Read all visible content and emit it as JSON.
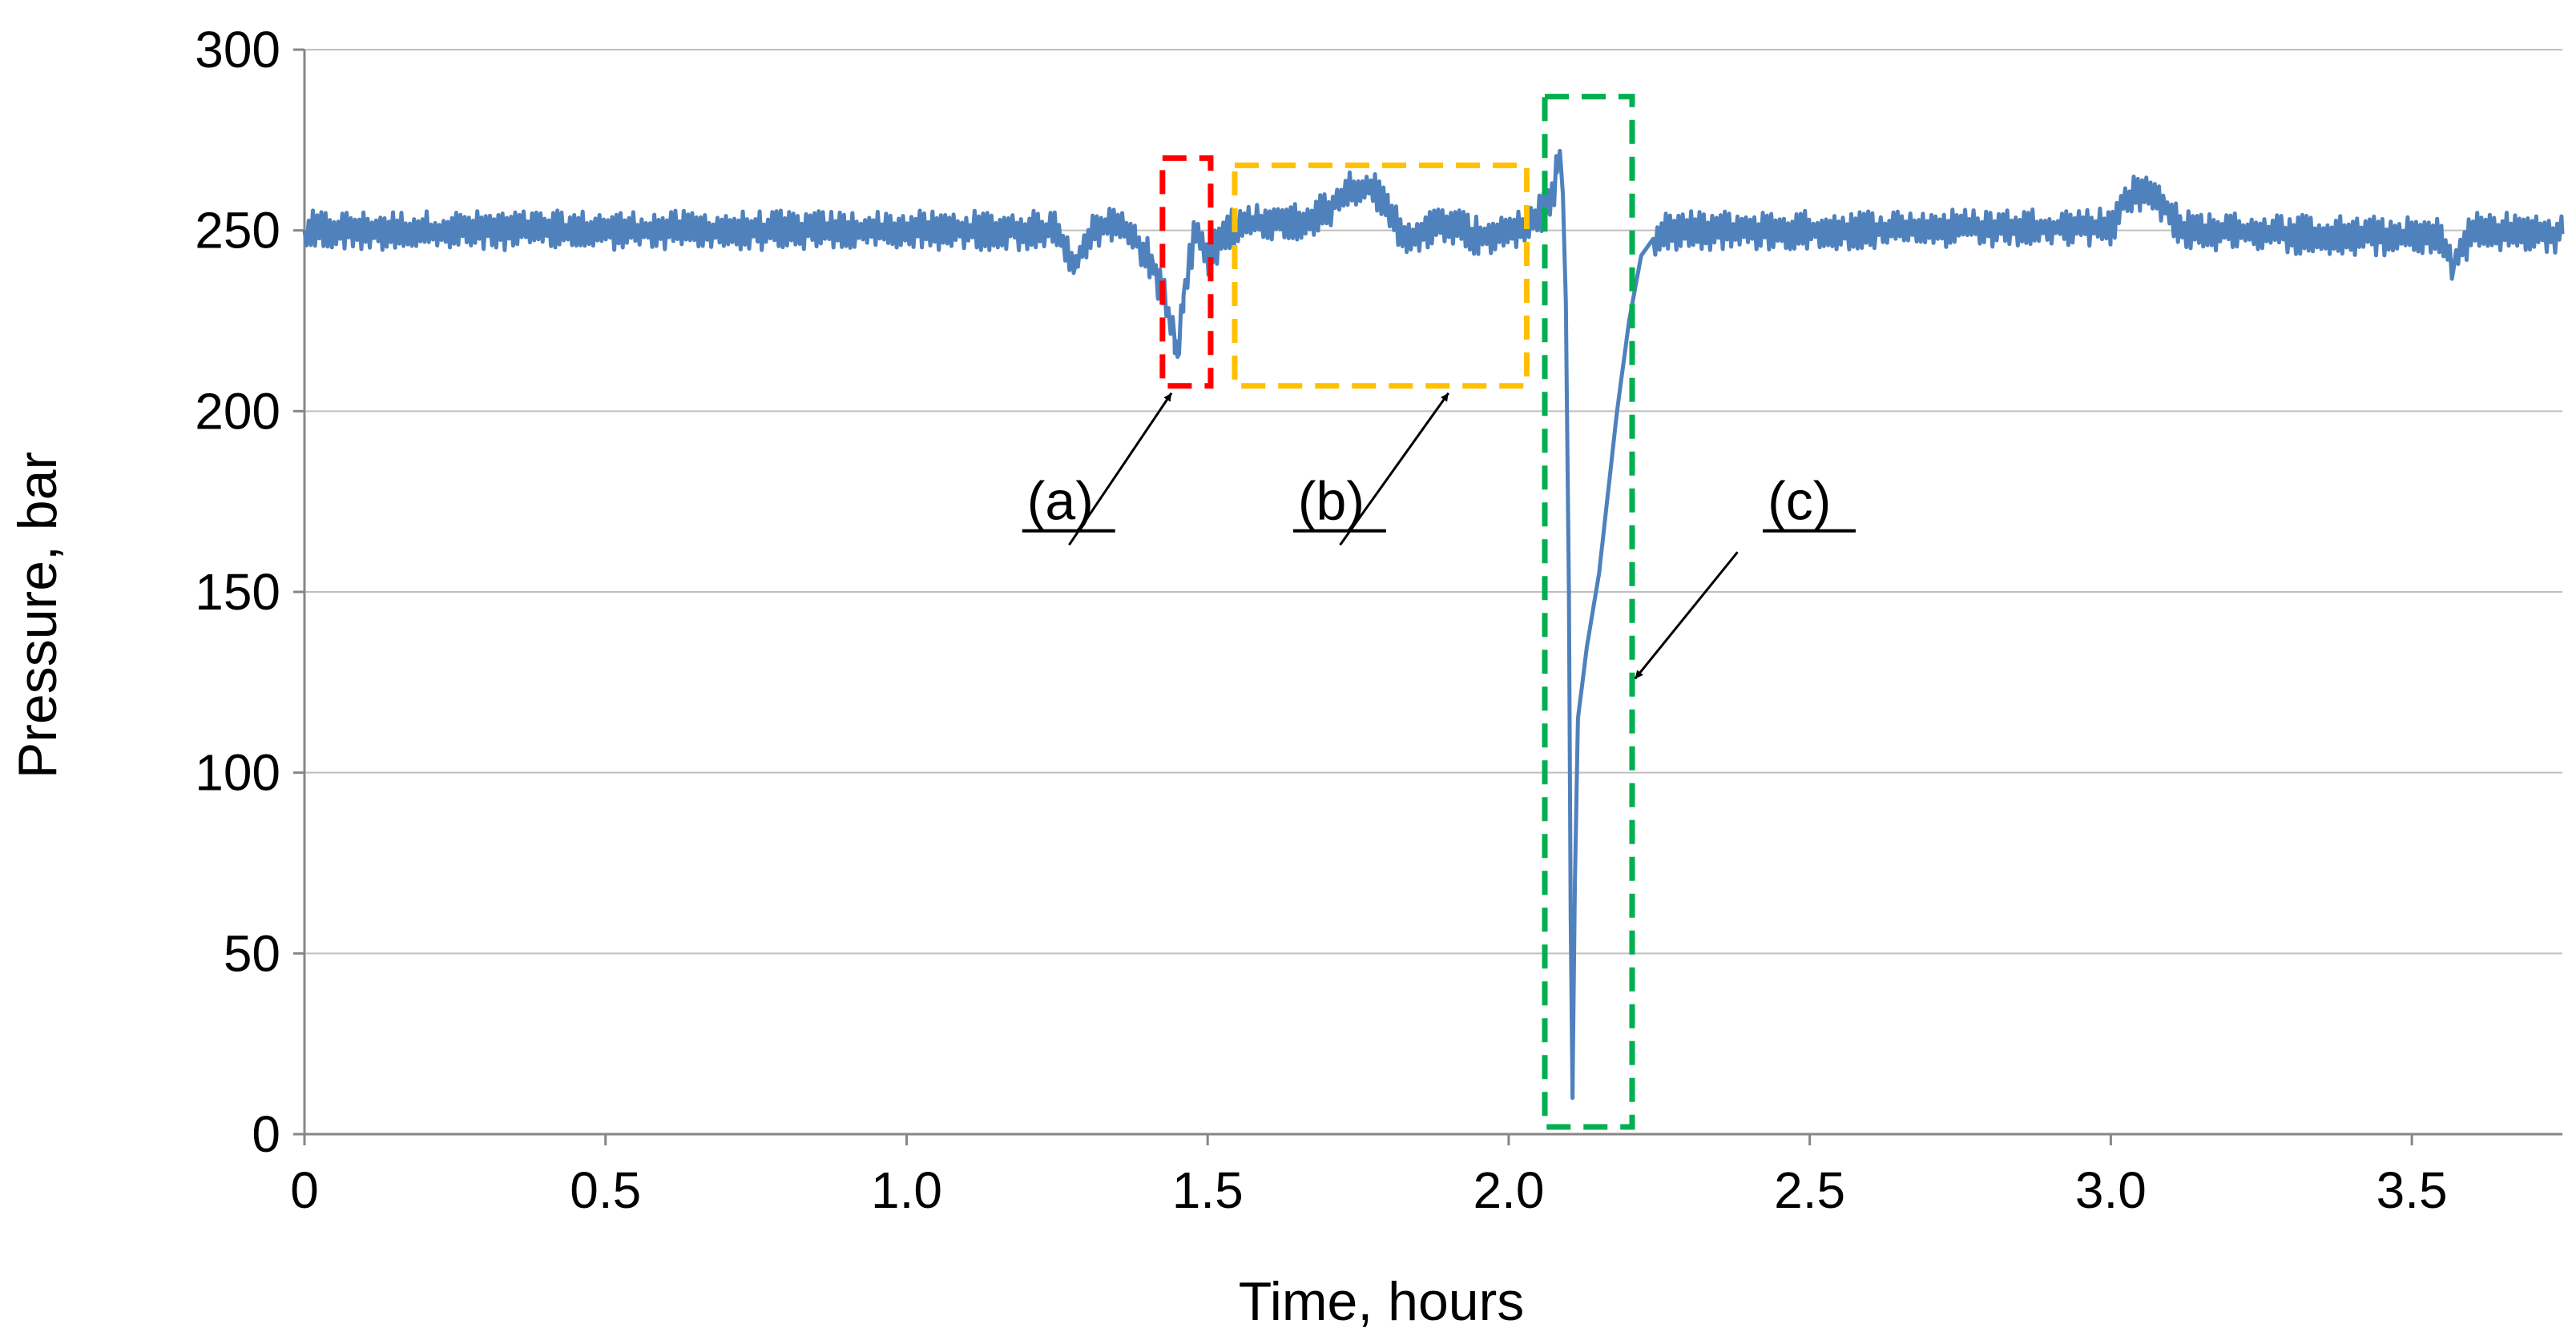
{
  "chart_data": {
    "type": "line",
    "title": "",
    "xlabel": "Time, hours",
    "ylabel": "Pressure, bar",
    "xlim": [
      0,
      3.75
    ],
    "ylim": [
      0,
      300
    ],
    "x_ticks": [
      0,
      0.5,
      1.0,
      1.5,
      2.0,
      2.5,
      3.0,
      3.5
    ],
    "x_tick_labels": [
      "0",
      "0.5",
      "1.0",
      "1.5",
      "2.0",
      "2.5",
      "3.0",
      "3.5"
    ],
    "y_ticks": [
      0,
      50,
      100,
      150,
      200,
      250,
      300
    ],
    "y_tick_labels": [
      "0",
      "50",
      "100",
      "150",
      "200",
      "250",
      "300"
    ],
    "grid": "horizontal",
    "series": [
      {
        "name": "Pressure",
        "color": "#4F81BD",
        "baseline": 250,
        "noise_amplitude": 4,
        "points": [
          [
            0.0,
            250
          ],
          [
            1.25,
            250
          ],
          [
            1.28,
            240
          ],
          [
            1.3,
            248
          ],
          [
            1.34,
            252
          ],
          [
            1.38,
            248
          ],
          [
            1.41,
            240
          ],
          [
            1.43,
            230
          ],
          [
            1.445,
            220
          ],
          [
            1.45,
            215
          ],
          [
            1.46,
            232
          ],
          [
            1.48,
            250
          ],
          [
            1.5,
            242
          ],
          [
            1.53,
            250
          ],
          [
            1.6,
            253
          ],
          [
            1.65,
            252
          ],
          [
            1.7,
            256
          ],
          [
            1.74,
            262
          ],
          [
            1.77,
            262
          ],
          [
            1.8,
            255
          ],
          [
            1.83,
            248
          ],
          [
            1.9,
            252
          ],
          [
            1.95,
            248
          ],
          [
            2.0,
            250
          ],
          [
            2.04,
            252
          ],
          [
            2.07,
            258
          ],
          [
            2.08,
            266
          ],
          [
            2.085,
            272
          ],
          [
            2.09,
            260
          ],
          [
            2.095,
            230
          ],
          [
            2.1,
            150
          ],
          [
            2.103,
            60
          ],
          [
            2.106,
            10
          ],
          [
            2.11,
            70
          ],
          [
            2.115,
            115
          ],
          [
            2.13,
            135
          ],
          [
            2.15,
            155
          ],
          [
            2.16,
            170
          ],
          [
            2.18,
            200
          ],
          [
            2.2,
            225
          ],
          [
            2.22,
            243
          ],
          [
            2.25,
            250
          ],
          [
            2.5,
            250
          ],
          [
            3.0,
            251
          ],
          [
            3.02,
            258
          ],
          [
            3.05,
            261
          ],
          [
            3.09,
            257
          ],
          [
            3.12,
            250
          ],
          [
            3.3,
            249
          ],
          [
            3.55,
            248
          ],
          [
            3.57,
            240
          ],
          [
            3.6,
            250
          ],
          [
            3.75,
            249
          ]
        ]
      }
    ],
    "highlight_boxes": [
      {
        "id": "a",
        "color": "#FF0000",
        "x": [
          1.425,
          1.505
        ],
        "y": [
          207,
          270
        ]
      },
      {
        "id": "b",
        "color": "#FFC000",
        "x": [
          1.545,
          2.03
        ],
        "y": [
          207,
          268
        ]
      },
      {
        "id": "c",
        "color": "#00B050",
        "x": [
          2.06,
          2.205
        ],
        "y": [
          2,
          287
        ]
      }
    ],
    "annotations": [
      {
        "label": "(a)",
        "text_at": [
          1.2,
          170
        ],
        "arrow_from": [
          1.27,
          163
        ],
        "arrow_to": [
          1.44,
          205
        ]
      },
      {
        "label": "(b)",
        "text_at": [
          1.65,
          170
        ],
        "arrow_from": [
          1.72,
          163
        ],
        "arrow_to": [
          1.9,
          205
        ]
      },
      {
        "label": "(c)",
        "text_at": [
          2.43,
          170
        ],
        "arrow_from": [
          2.38,
          161
        ],
        "arrow_to": [
          2.21,
          126
        ]
      }
    ]
  }
}
